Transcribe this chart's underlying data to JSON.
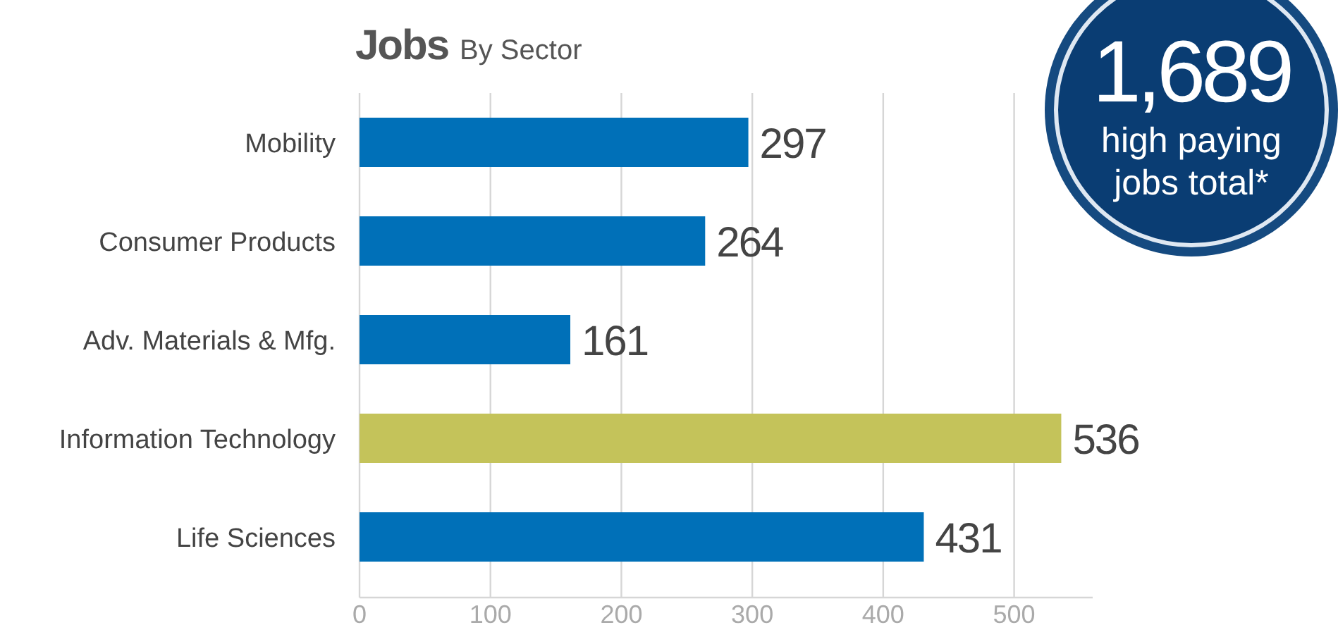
{
  "chart_data": {
    "type": "bar",
    "orientation": "horizontal",
    "title": "Jobs",
    "subtitle": "By Sector",
    "categories": [
      "Mobility",
      "Consumer Products",
      "Adv. Materials & Mfg.",
      "Information Technology",
      "Life Sciences"
    ],
    "values": [
      297,
      264,
      161,
      536,
      431
    ],
    "colors": [
      "#0070b8",
      "#0070b8",
      "#0070b8",
      "#c4c35a",
      "#0070b8"
    ],
    "xlim": [
      0,
      560
    ],
    "xticks": [
      0,
      100,
      200,
      300,
      400,
      500
    ],
    "grid": "x",
    "data_labels": true,
    "annotations": [
      "1,689",
      "high paying",
      "jobs total*"
    ]
  }
}
